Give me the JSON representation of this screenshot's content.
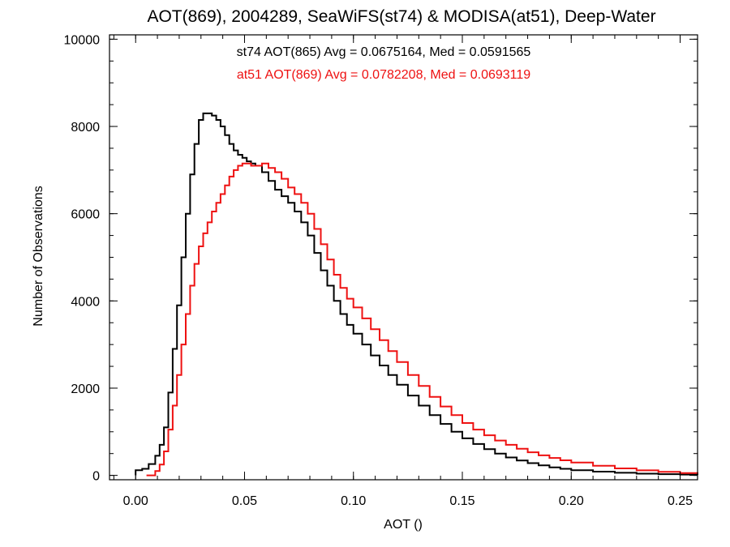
{
  "chart_data": {
    "type": "line",
    "title": "AOT(869), 2004289, SeaWiFS(st74) & MODISA(at51), Deep-Water",
    "xlabel": "AOT ()",
    "ylabel": "Number of Observations",
    "xlim": [
      -0.012,
      0.258
    ],
    "ylim": [
      -100,
      10100
    ],
    "x_ticks": [
      0.0,
      0.05,
      0.1,
      0.15,
      0.2,
      0.25
    ],
    "x_tick_labels": [
      "0.00",
      "0.05",
      "0.10",
      "0.15",
      "0.20",
      "0.25"
    ],
    "y_ticks": [
      0,
      2000,
      4000,
      6000,
      8000,
      10000
    ],
    "y_tick_labels": [
      "0",
      "2000",
      "4000",
      "6000",
      "8000",
      "10000"
    ],
    "x_minor_step": 0.01,
    "y_minor_step": 500,
    "grid": false,
    "step_style": "histogram",
    "annotations": [
      {
        "text": "st74 AOT(865) Avg = 0.0675164, Med = 0.0591565",
        "color": "#000000"
      },
      {
        "text": "at51 AOT(869) Avg = 0.0782208, Med = 0.0693119",
        "color": "#ee1111"
      }
    ],
    "series": [
      {
        "color": "#000000",
        "points": [
          [
            0.0,
            0
          ],
          [
            0.0,
            120
          ],
          [
            0.003,
            150
          ],
          [
            0.006,
            260
          ],
          [
            0.009,
            450
          ],
          [
            0.011,
            700
          ],
          [
            0.013,
            1100
          ],
          [
            0.015,
            1900
          ],
          [
            0.017,
            2900
          ],
          [
            0.019,
            3900
          ],
          [
            0.021,
            5000
          ],
          [
            0.023,
            6000
          ],
          [
            0.025,
            6900
          ],
          [
            0.027,
            7600
          ],
          [
            0.029,
            8150
          ],
          [
            0.031,
            8300
          ],
          [
            0.033,
            8300
          ],
          [
            0.035,
            8250
          ],
          [
            0.037,
            8150
          ],
          [
            0.039,
            8000
          ],
          [
            0.041,
            7800
          ],
          [
            0.043,
            7600
          ],
          [
            0.045,
            7450
          ],
          [
            0.047,
            7350
          ],
          [
            0.049,
            7280
          ],
          [
            0.051,
            7200
          ],
          [
            0.053,
            7150
          ],
          [
            0.055,
            7100
          ],
          [
            0.058,
            6950
          ],
          [
            0.061,
            6750
          ],
          [
            0.064,
            6550
          ],
          [
            0.067,
            6400
          ],
          [
            0.07,
            6250
          ],
          [
            0.073,
            6050
          ],
          [
            0.076,
            5800
          ],
          [
            0.079,
            5500
          ],
          [
            0.082,
            5100
          ],
          [
            0.085,
            4700
          ],
          [
            0.088,
            4350
          ],
          [
            0.091,
            4000
          ],
          [
            0.094,
            3700
          ],
          [
            0.097,
            3450
          ],
          [
            0.1,
            3250
          ],
          [
            0.104,
            3000
          ],
          [
            0.108,
            2750
          ],
          [
            0.112,
            2520
          ],
          [
            0.116,
            2300
          ],
          [
            0.12,
            2080
          ],
          [
            0.125,
            1830
          ],
          [
            0.13,
            1600
          ],
          [
            0.135,
            1380
          ],
          [
            0.14,
            1180
          ],
          [
            0.145,
            1000
          ],
          [
            0.15,
            850
          ],
          [
            0.155,
            720
          ],
          [
            0.16,
            600
          ],
          [
            0.165,
            500
          ],
          [
            0.17,
            410
          ],
          [
            0.175,
            340
          ],
          [
            0.18,
            280
          ],
          [
            0.185,
            230
          ],
          [
            0.19,
            185
          ],
          [
            0.195,
            150
          ],
          [
            0.2,
            120
          ],
          [
            0.21,
            85
          ],
          [
            0.22,
            60
          ],
          [
            0.23,
            40
          ],
          [
            0.24,
            28
          ],
          [
            0.25,
            18
          ],
          [
            0.258,
            12
          ]
        ]
      },
      {
        "color": "#ee1111",
        "points": [
          [
            0.005,
            0
          ],
          [
            0.009,
            100
          ],
          [
            0.011,
            250
          ],
          [
            0.013,
            550
          ],
          [
            0.015,
            1050
          ],
          [
            0.017,
            1600
          ],
          [
            0.019,
            2300
          ],
          [
            0.021,
            3000
          ],
          [
            0.023,
            3700
          ],
          [
            0.025,
            4350
          ],
          [
            0.027,
            4850
          ],
          [
            0.029,
            5250
          ],
          [
            0.031,
            5550
          ],
          [
            0.033,
            5800
          ],
          [
            0.035,
            6050
          ],
          [
            0.037,
            6250
          ],
          [
            0.039,
            6450
          ],
          [
            0.041,
            6650
          ],
          [
            0.043,
            6850
          ],
          [
            0.045,
            7000
          ],
          [
            0.047,
            7100
          ],
          [
            0.049,
            7150
          ],
          [
            0.051,
            7150
          ],
          [
            0.053,
            7100
          ],
          [
            0.055,
            7100
          ],
          [
            0.058,
            7150
          ],
          [
            0.061,
            7050
          ],
          [
            0.064,
            6950
          ],
          [
            0.067,
            6800
          ],
          [
            0.07,
            6600
          ],
          [
            0.073,
            6450
          ],
          [
            0.076,
            6250
          ],
          [
            0.079,
            6000
          ],
          [
            0.082,
            5650
          ],
          [
            0.085,
            5300
          ],
          [
            0.088,
            4950
          ],
          [
            0.091,
            4600
          ],
          [
            0.094,
            4300
          ],
          [
            0.097,
            4050
          ],
          [
            0.1,
            3850
          ],
          [
            0.104,
            3600
          ],
          [
            0.108,
            3350
          ],
          [
            0.112,
            3100
          ],
          [
            0.116,
            2850
          ],
          [
            0.12,
            2600
          ],
          [
            0.125,
            2300
          ],
          [
            0.13,
            2050
          ],
          [
            0.135,
            1800
          ],
          [
            0.14,
            1580
          ],
          [
            0.145,
            1380
          ],
          [
            0.15,
            1200
          ],
          [
            0.155,
            1050
          ],
          [
            0.16,
            920
          ],
          [
            0.165,
            800
          ],
          [
            0.17,
            700
          ],
          [
            0.175,
            610
          ],
          [
            0.18,
            530
          ],
          [
            0.185,
            460
          ],
          [
            0.19,
            400
          ],
          [
            0.195,
            345
          ],
          [
            0.2,
            295
          ],
          [
            0.21,
            220
          ],
          [
            0.22,
            160
          ],
          [
            0.23,
            115
          ],
          [
            0.24,
            80
          ],
          [
            0.25,
            55
          ],
          [
            0.258,
            40
          ]
        ]
      }
    ]
  }
}
